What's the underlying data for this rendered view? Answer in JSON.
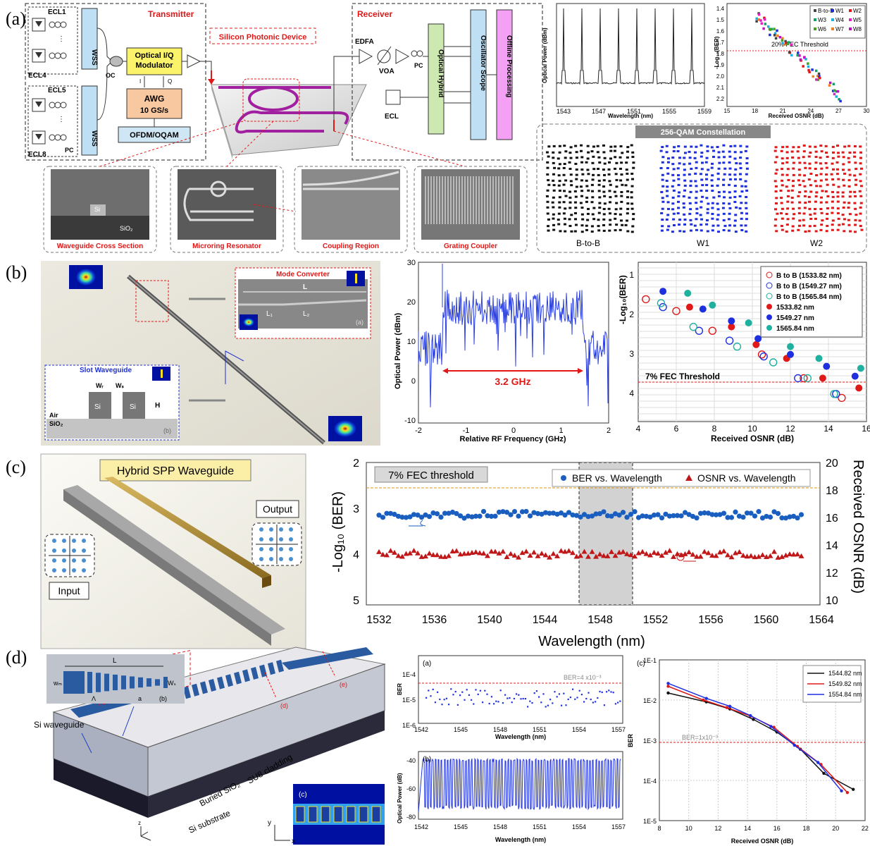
{
  "panel_labels": [
    "(a)",
    "(b)",
    "(c)",
    "(d)"
  ],
  "colors": {
    "red": "#e01818",
    "blue": "#1e2fe0",
    "magenta": "#b0109a",
    "yellowbox": "#fbf36a",
    "orangebox": "#f8c8a0",
    "lightblue": "#bfe0f4",
    "green": "#cde8b0",
    "pink": "#f4a0f4"
  },
  "a": {
    "transmitter": "Transmitter",
    "receiver": "Receiver",
    "silicon": "Silicon Photonic Device",
    "ecl1": "ECL1",
    "ecl4": "ECL4",
    "ecl5": "ECL5",
    "ecl8": "ECL8",
    "wss": "WSS",
    "oc": "OC",
    "pc": "PC",
    "iq_mod": "Optical I/Q Modulator",
    "i": "I",
    "q": "Q",
    "awg": "AWG",
    "awg_rate": "10 GS/s",
    "ofdm": "OFDM/OQAM",
    "edfa": "EDFA",
    "voa": "VOA",
    "pc2": "PC",
    "hybrid": "Optical Hybrid",
    "scope": "Oscillator Scope",
    "offline": "Offline Processing",
    "ecl": "ECL",
    "sem_si": "Si",
    "sem_sio2": "SiO₂",
    "cap_wg": "Waveguide Cross Section",
    "cap_mr": "Microring Resonator",
    "cap_cr": "Coupling Region",
    "cap_gc": "Grating Coupler",
    "spec_ylabel": "Optical Power (dBm)",
    "spec_xlabel": "Wavelength (nm)",
    "spec_xticks": [
      "1543",
      "1547",
      "1551",
      "1555",
      "1559"
    ],
    "ber_ylabel": "-Log₁₀(BER)",
    "ber_xlabel": "Received OSNR (dB)",
    "ber_xticks": [
      "15",
      "18",
      "21",
      "24",
      "27",
      "30"
    ],
    "ber_yticks": [
      "1.4",
      "1.5",
      "1.6",
      "1.7",
      "1.8",
      "1.9",
      "2.0",
      "2.1",
      "2.2"
    ],
    "ber_fec": "20% FEC Threshold",
    "ber_legend": [
      "B-to-B",
      "W1",
      "W2",
      "W3",
      "W4",
      "W5",
      "W6",
      "W7",
      "W8"
    ],
    "const_title": "256-QAM Constellation",
    "const_labels": [
      "B-to-B",
      "W1",
      "W2"
    ]
  },
  "b": {
    "mode_converter": "Mode Converter",
    "L": "L",
    "L1": "L₁",
    "L2": "L₂",
    "sub_a": "(a)",
    "slot": "Slot Waveguide",
    "wr": "Wᵣ",
    "ws": "Wₛ",
    "si": "Si",
    "h": "H",
    "air": "Air",
    "sio2": "SiO₂",
    "sub_b": "(b)",
    "spec_ylabel": "Optical Power (dBm)",
    "spec_xlabel": "Relative RF Frequency (GHz)",
    "spec_xticks": [
      "-2",
      "-1",
      "0",
      "1",
      "2"
    ],
    "spec_yticks": [
      "30",
      "20",
      "10",
      "0",
      "-10"
    ],
    "bw": "3.2 GHz",
    "ber_ylabel": "-Log₁₀(BER)",
    "ber_xlabel": "Received OSNR (dB)",
    "ber_xticks": [
      "4",
      "6",
      "8",
      "10",
      "12",
      "14",
      "16"
    ],
    "ber_yticks": [
      "1",
      "2",
      "3",
      "4"
    ],
    "fec": "7% FEC Threshold",
    "legend": [
      "B to B (1533.82 nm)",
      "B to B (1549.27 nm)",
      "B to B (1565.84 nm)",
      "1533.82 nm",
      "1549.27 nm",
      "1565.84 nm"
    ]
  },
  "c": {
    "title": "Hybrid SPP Waveguide",
    "input": "Input",
    "output": "Output",
    "ylabel": "-Log₁₀ (BER)",
    "y2label": "Received OSNR (dB)",
    "xlabel": "Wavelength (nm)",
    "xticks": [
      "1532",
      "1536",
      "1540",
      "1544",
      "1548",
      "1552",
      "1556",
      "1560",
      "1564"
    ],
    "yticks": [
      "2",
      "3",
      "4",
      "5"
    ],
    "y2ticks": [
      "20",
      "18",
      "16",
      "14",
      "12",
      "10"
    ],
    "fec": "7% FEC threshold",
    "legend": [
      "BER vs. Wavelength",
      "OSNR vs. Wavelength"
    ]
  },
  "d": {
    "L": "L",
    "wm": "wₘ",
    "ws": "Wₛ",
    "lam": "Λ",
    "a": "a",
    "sub_b": "(b)",
    "si_wg": "Si waveguide",
    "su8": "SU8 cladding",
    "box": "Buried SiO₂",
    "sub": "Si substrate",
    "sub_d": "(d)",
    "sub_e": "(e)",
    "sub_c": "(c)",
    "axis_x": "x",
    "axis_y": "y",
    "axis_z": "z",
    "top_label": "(a)",
    "top_ylabel": "BER",
    "top_xlabel": "Wavelength (nm)",
    "top_threshold": "BER=4 x10⁻³",
    "top_yticks": [
      "1E-4",
      "1E-5",
      "1E-6"
    ],
    "xticks": [
      "1542",
      "1545",
      "1548",
      "1551",
      "1554",
      "1557"
    ],
    "bot_label": "(b)",
    "bot_ylabel": "Optical Power (dB)",
    "bot_xlabel": "Wavelength (nm)",
    "bot_yticks": [
      "-40",
      "-60",
      "-80"
    ],
    "right_label": "(c)",
    "right_ylabel": "BER",
    "right_xlabel": "Received OSNR (dB)",
    "right_yticks": [
      "1E-1",
      "1E-2",
      "1E-3",
      "1E-4",
      "1E-5"
    ],
    "right_xticks": [
      "8",
      "10",
      "12",
      "14",
      "16",
      "18",
      "20",
      "22"
    ],
    "right_threshold": "BER=1x10⁻³",
    "right_legend": [
      "1544.82 nm",
      "1549.82 nm",
      "1554.84 nm"
    ]
  }
}
